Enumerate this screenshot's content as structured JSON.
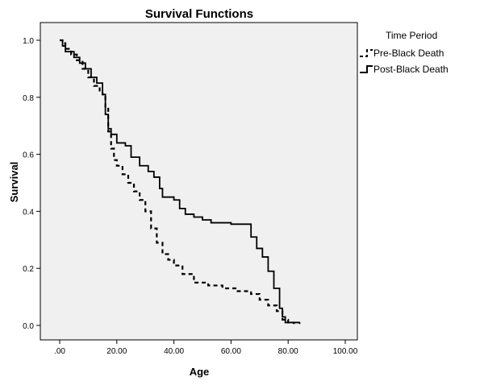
{
  "chart_data": {
    "type": "line",
    "title": "Survival Functions",
    "xlabel": "Age",
    "ylabel": "Survival",
    "xlim": [
      0,
      100
    ],
    "ylim": [
      0,
      1.0
    ],
    "x_ticks": [
      ".00",
      "20.00",
      "40.00",
      "60.00",
      "80.00",
      "100.00"
    ],
    "y_ticks": [
      "0.0",
      "0.2",
      "0.4",
      "0.6",
      "0.8",
      "1.0"
    ],
    "grid": false,
    "legend": {
      "title": "Time Period",
      "position": "top-right"
    },
    "plot_background": "#f0f0f0",
    "series": [
      {
        "name": "Pre-Black Death",
        "style": "dashed",
        "color": "#000000",
        "points": [
          [
            0,
            1.0
          ],
          [
            1,
            0.99
          ],
          [
            2,
            0.97
          ],
          [
            4,
            0.95
          ],
          [
            6,
            0.93
          ],
          [
            8,
            0.9
          ],
          [
            10,
            0.87
          ],
          [
            12,
            0.84
          ],
          [
            14,
            0.82
          ],
          [
            15,
            0.81
          ],
          [
            16,
            0.76
          ],
          [
            17,
            0.68
          ],
          [
            18,
            0.62
          ],
          [
            19,
            0.58
          ],
          [
            20,
            0.56
          ],
          [
            22,
            0.53
          ],
          [
            24,
            0.5
          ],
          [
            26,
            0.47
          ],
          [
            28,
            0.44
          ],
          [
            30,
            0.4
          ],
          [
            32,
            0.34
          ],
          [
            34,
            0.29
          ],
          [
            36,
            0.25
          ],
          [
            38,
            0.23
          ],
          [
            40,
            0.21
          ],
          [
            43,
            0.18
          ],
          [
            47,
            0.15
          ],
          [
            52,
            0.14
          ],
          [
            57,
            0.13
          ],
          [
            62,
            0.12
          ],
          [
            67,
            0.11
          ],
          [
            70,
            0.09
          ],
          [
            73,
            0.07
          ],
          [
            76,
            0.05
          ],
          [
            78,
            0.02
          ],
          [
            80,
            0.01
          ],
          [
            82,
            0.005
          ]
        ]
      },
      {
        "name": "Post-Black Death",
        "style": "solid",
        "color": "#000000",
        "points": [
          [
            0,
            1.0
          ],
          [
            1,
            0.98
          ],
          [
            2,
            0.96
          ],
          [
            5,
            0.94
          ],
          [
            7,
            0.92
          ],
          [
            9,
            0.9
          ],
          [
            11,
            0.87
          ],
          [
            13,
            0.85
          ],
          [
            15,
            0.81
          ],
          [
            16,
            0.74
          ],
          [
            17,
            0.69
          ],
          [
            18,
            0.67
          ],
          [
            20,
            0.64
          ],
          [
            23,
            0.63
          ],
          [
            25,
            0.59
          ],
          [
            28,
            0.56
          ],
          [
            31,
            0.54
          ],
          [
            33,
            0.52
          ],
          [
            35,
            0.48
          ],
          [
            36,
            0.45
          ],
          [
            40,
            0.44
          ],
          [
            42,
            0.41
          ],
          [
            44,
            0.39
          ],
          [
            47,
            0.38
          ],
          [
            50,
            0.37
          ],
          [
            53,
            0.36
          ],
          [
            60,
            0.355
          ],
          [
            66,
            0.355
          ],
          [
            67,
            0.31
          ],
          [
            69,
            0.27
          ],
          [
            71,
            0.24
          ],
          [
            73,
            0.19
          ],
          [
            75,
            0.13
          ],
          [
            77,
            0.06
          ],
          [
            78,
            0.03
          ],
          [
            79,
            0.01
          ],
          [
            84,
            0.005
          ]
        ]
      }
    ]
  }
}
